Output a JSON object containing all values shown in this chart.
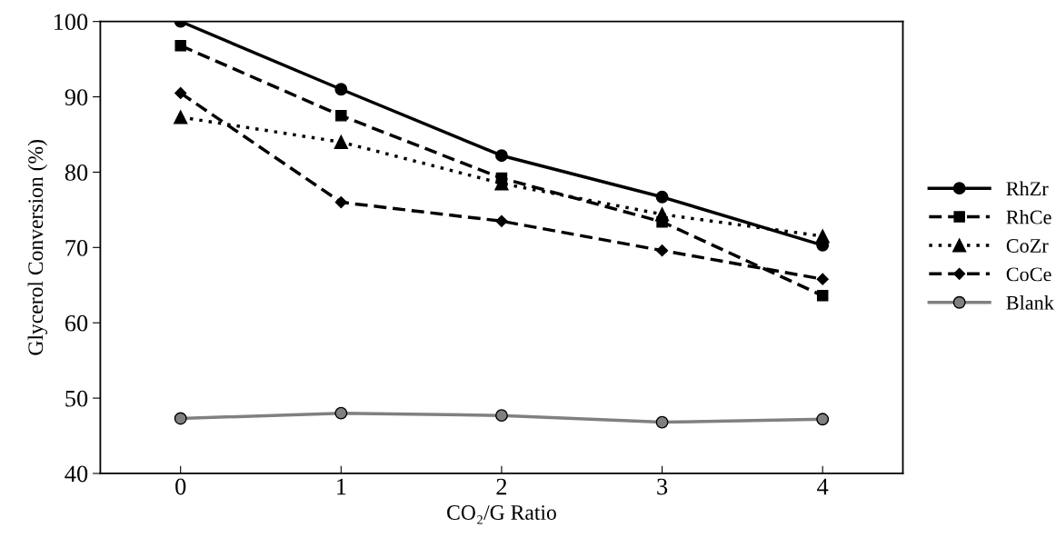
{
  "chart_data": {
    "type": "line",
    "xlabel": "CO₂/G Ratio",
    "ylabel": "Glycerol Conversion (%)",
    "x": [
      0,
      1,
      2,
      3,
      4
    ],
    "xlim": [
      -0.5,
      4.5
    ],
    "xticks": [
      0,
      1,
      2,
      3,
      4
    ],
    "ylim": [
      40,
      100
    ],
    "yticks": [
      40,
      50,
      60,
      70,
      80,
      90,
      100
    ],
    "grid": false,
    "legend": "right",
    "series": [
      {
        "name": "RhZr",
        "color": "#000000",
        "marker": "circle",
        "line_style": "solid",
        "values": [
          100,
          91.0,
          82.2,
          76.7,
          70.3
        ]
      },
      {
        "name": "RhCe",
        "color": "#000000",
        "marker": "square",
        "line_style": "dashed",
        "values": [
          96.8,
          87.5,
          79.2,
          73.4,
          63.6
        ]
      },
      {
        "name": "CoZr",
        "color": "#000000",
        "marker": "triangle",
        "line_style": "dotted",
        "values": [
          87.3,
          84.0,
          78.5,
          74.4,
          71.5
        ]
      },
      {
        "name": "CoCe",
        "color": "#000000",
        "marker": "diamond",
        "line_style": "dashed",
        "values": [
          90.5,
          76.0,
          73.5,
          69.6,
          65.8
        ]
      },
      {
        "name": "Blank",
        "color": "#808080",
        "marker": "circle",
        "line_style": "solid",
        "values": [
          47.3,
          48.0,
          47.7,
          46.8,
          47.2
        ]
      }
    ]
  }
}
